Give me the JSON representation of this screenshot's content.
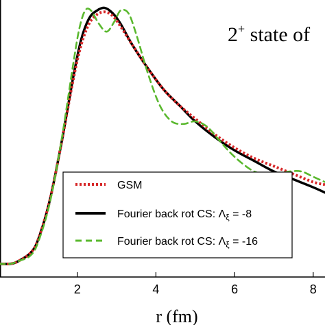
{
  "chart_data": {
    "type": "line",
    "xlabel": "r (fm)",
    "ylabel": "",
    "xlim": [
      0.0,
      8.3
    ],
    "ylim": [
      -0.05,
      1.0
    ],
    "x_ticks": [
      2,
      4,
      6,
      8
    ],
    "x_tick_labels": [
      "2",
      "4",
      "6",
      "8"
    ],
    "annotation": {
      "text": "2",
      "superscript": "+",
      "rest": " state of"
    },
    "legend": {
      "placement": "lower-center",
      "entries": [
        "GSM",
        "Fourier back rot CS: Λ",
        "Fourier back rot CS: Λ"
      ],
      "entry_suffix": [
        "",
        " = -8",
        " = -16"
      ],
      "entry_subscript": [
        "",
        "ξ",
        "ξ"
      ]
    },
    "grid": false,
    "series": [
      {
        "name": "GSM",
        "color": "#d62728",
        "style": "dotted",
        "x": [
          0.0,
          0.3,
          0.5,
          0.8,
          1.0,
          1.3,
          1.6,
          1.9,
          2.1,
          2.3,
          2.5,
          2.7,
          2.9,
          3.1,
          3.4,
          3.8,
          4.2,
          4.6,
          5.0,
          5.5,
          6.0,
          6.5,
          7.0,
          7.5,
          8.0,
          8.3
        ],
        "y": [
          0.0,
          0.0,
          0.01,
          0.04,
          0.09,
          0.24,
          0.46,
          0.7,
          0.83,
          0.91,
          0.945,
          0.955,
          0.94,
          0.9,
          0.83,
          0.74,
          0.66,
          0.6,
          0.55,
          0.49,
          0.44,
          0.4,
          0.37,
          0.34,
          0.31,
          0.3
        ]
      },
      {
        "name": "Fourier back rot CS: Λξ = -8",
        "color": "#000000",
        "style": "solid",
        "x": [
          0.0,
          0.3,
          0.5,
          0.8,
          1.0,
          1.3,
          1.6,
          1.9,
          2.1,
          2.3,
          2.5,
          2.7,
          2.9,
          3.1,
          3.4,
          3.8,
          4.2,
          4.6,
          5.0,
          5.5,
          6.0,
          6.5,
          7.0,
          7.5,
          8.0,
          8.3
        ],
        "y": [
          0.0,
          0.0,
          0.01,
          0.04,
          0.09,
          0.24,
          0.46,
          0.71,
          0.85,
          0.93,
          0.96,
          0.97,
          0.95,
          0.91,
          0.83,
          0.74,
          0.66,
          0.6,
          0.54,
          0.48,
          0.43,
          0.39,
          0.35,
          0.32,
          0.29,
          0.27
        ]
      },
      {
        "name": "Fourier back rot CS: Λξ = -16",
        "color": "#5ab82e",
        "style": "dashed",
        "x": [
          0.0,
          0.3,
          0.5,
          0.8,
          1.0,
          1.3,
          1.6,
          1.9,
          2.05,
          2.2,
          2.35,
          2.55,
          2.75,
          2.95,
          3.1,
          3.3,
          3.5,
          3.8,
          4.1,
          4.4,
          4.7,
          5.0,
          5.3,
          5.6,
          5.9,
          6.2,
          6.5,
          6.8,
          7.1,
          7.4,
          7.7,
          8.0,
          8.3
        ],
        "y": [
          0.0,
          0.0,
          0.01,
          0.03,
          0.08,
          0.23,
          0.47,
          0.76,
          0.89,
          0.96,
          0.96,
          0.91,
          0.88,
          0.92,
          0.96,
          0.95,
          0.87,
          0.72,
          0.6,
          0.54,
          0.53,
          0.54,
          0.52,
          0.47,
          0.42,
          0.38,
          0.35,
          0.34,
          0.34,
          0.35,
          0.35,
          0.33,
          0.31
        ]
      }
    ]
  }
}
